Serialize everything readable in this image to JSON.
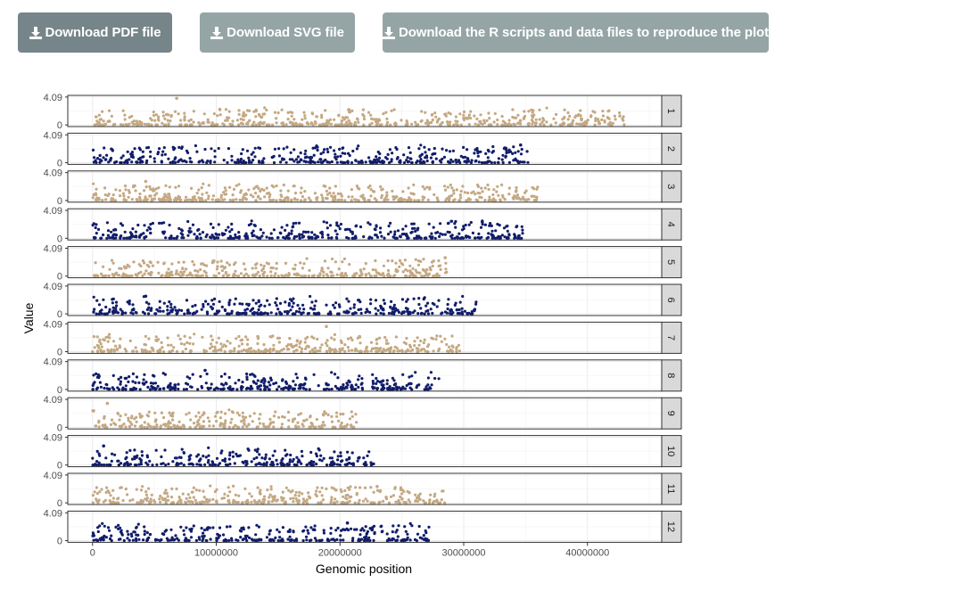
{
  "buttons": {
    "pdf_label": "Download PDF file",
    "svg_label": "Download SVG file",
    "r_label": "Download the R scripts and data files to reproduce the plot"
  },
  "chart_data": {
    "type": "scatter",
    "title": "",
    "xlabel": "Genomic position",
    "ylabel": "Value",
    "xlim": [
      -2000000,
      46000000
    ],
    "ylim": [
      0,
      4.09
    ],
    "y_ticks": [
      "4.09",
      "0"
    ],
    "x_ticks": [
      {
        "value": 0,
        "label": "0"
      },
      {
        "value": 10000000,
        "label": "10000000"
      },
      {
        "value": 20000000,
        "label": "20000000"
      },
      {
        "value": 30000000,
        "label": "30000000"
      },
      {
        "value": 40000000,
        "label": "40000000"
      }
    ],
    "colors": {
      "odd": "#c4a882",
      "even": "#111d6b",
      "strip": "#d9d9d9",
      "grid": "#ebebeb"
    },
    "panels": [
      {
        "label": "1",
        "max_pos": 43000000,
        "peak_pos": 6800000,
        "peak_val": 3.9
      },
      {
        "label": "2",
        "max_pos": 35200000,
        "peak_pos": 34600000,
        "peak_val": 2.6
      },
      {
        "label": "3",
        "max_pos": 36000000,
        "peak_pos": 4300000,
        "peak_val": 2.8
      },
      {
        "label": "4",
        "max_pos": 34800000,
        "peak_pos": 31500000,
        "peak_val": 2.4
      },
      {
        "label": "5",
        "max_pos": 29000000,
        "peak_pos": 28500000,
        "peak_val": 2.7
      },
      {
        "label": "6",
        "max_pos": 31000000,
        "peak_pos": 4300000,
        "peak_val": 2.6
      },
      {
        "label": "7",
        "max_pos": 29700000,
        "peak_pos": 18900000,
        "peak_val": 3.7
      },
      {
        "label": "8",
        "max_pos": 28000000,
        "peak_pos": 9100000,
        "peak_val": 2.8
      },
      {
        "label": "9",
        "max_pos": 21500000,
        "peak_pos": 1200000,
        "peak_val": 3.5
      },
      {
        "label": "10",
        "max_pos": 23000000,
        "peak_pos": 900000,
        "peak_val": 2.8
      },
      {
        "label": "11",
        "max_pos": 28700000,
        "peak_pos": 23000000,
        "peak_val": 2.4
      },
      {
        "label": "12",
        "max_pos": 27200000,
        "peak_pos": 20600000,
        "peak_val": 2.6
      }
    ]
  }
}
